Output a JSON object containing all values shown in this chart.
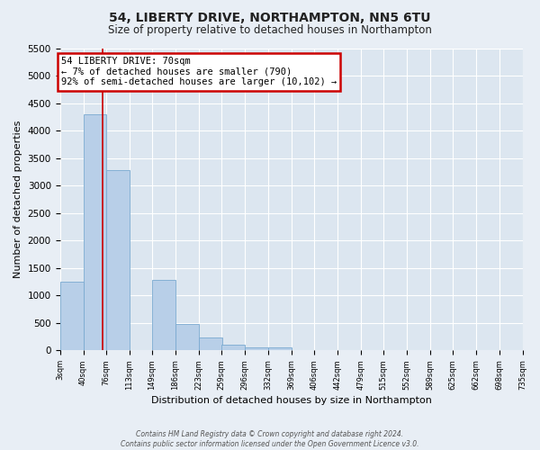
{
  "title": "54, LIBERTY DRIVE, NORTHAMPTON, NN5 6TU",
  "subtitle": "Size of property relative to detached houses in Northampton",
  "xlabel": "Distribution of detached houses by size in Northampton",
  "ylabel": "Number of detached properties",
  "bar_color": "#b8cfe8",
  "bar_edgecolor": "#7aaad0",
  "background_color": "#dce6f0",
  "grid_color": "#ffffff",
  "bar_left_edges": [
    3,
    40,
    76,
    113,
    149,
    186,
    223,
    259,
    296,
    332,
    369,
    406,
    442,
    479,
    515,
    552,
    589,
    625,
    662,
    698
  ],
  "bar_heights": [
    1250,
    4300,
    3280,
    0,
    1280,
    480,
    230,
    100,
    60,
    50,
    0,
    0,
    0,
    0,
    0,
    0,
    0,
    0,
    0,
    0
  ],
  "bin_width": 37,
  "xtick_labels": [
    "3sqm",
    "40sqm",
    "76sqm",
    "113sqm",
    "149sqm",
    "186sqm",
    "223sqm",
    "259sqm",
    "296sqm",
    "332sqm",
    "369sqm",
    "406sqm",
    "442sqm",
    "479sqm",
    "515sqm",
    "552sqm",
    "589sqm",
    "625sqm",
    "662sqm",
    "698sqm",
    "735sqm"
  ],
  "ylim": [
    0,
    5500
  ],
  "yticks": [
    0,
    500,
    1000,
    1500,
    2000,
    2500,
    3000,
    3500,
    4000,
    4500,
    5000,
    5500
  ],
  "vline_x": 70,
  "vline_color": "#cc0000",
  "annotation_text": "54 LIBERTY DRIVE: 70sqm\n← 7% of detached houses are smaller (790)\n92% of semi-detached houses are larger (10,102) →",
  "annotation_box_facecolor": "#ffffff",
  "annotation_box_edgecolor": "#cc0000",
  "footer_line1": "Contains HM Land Registry data © Crown copyright and database right 2024.",
  "footer_line2": "Contains public sector information licensed under the Open Government Licence v3.0.",
  "fig_facecolor": "#e8eef5"
}
